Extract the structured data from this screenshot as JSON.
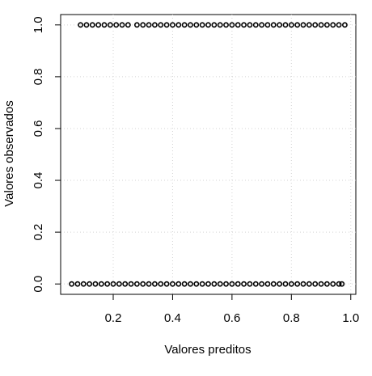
{
  "chart_data": {
    "type": "scatter",
    "x_label": "Valores preditos",
    "y_label": "Valores observados",
    "xlim": [
      0.023,
      1.017
    ],
    "ylim": [
      -0.04,
      1.04
    ],
    "xticks": [
      0.2,
      0.4,
      0.6,
      0.8,
      {
        "value": 1,
        "label": "1.0"
      }
    ],
    "yticks": [
      {
        "value": 0,
        "label": "0.0"
      },
      0.2,
      0.4,
      0.6,
      0.8,
      {
        "value": 1,
        "label": "1.0"
      }
    ],
    "grid": true,
    "series": [
      {
        "color": "#000000",
        "x": [
          0.09,
          0.11,
          0.13,
          0.15,
          0.17,
          0.19,
          0.21,
          0.23,
          0.25,
          0.28,
          0.3,
          0.32,
          0.34,
          0.36,
          0.38,
          0.4,
          0.42,
          0.44,
          0.46,
          0.48,
          0.5,
          0.52,
          0.54,
          0.56,
          0.58,
          0.6,
          0.62,
          0.64,
          0.66,
          0.68,
          0.7,
          0.72,
          0.74,
          0.76,
          0.78,
          0.8,
          0.82,
          0.84,
          0.86,
          0.88,
          0.9,
          0.92,
          0.94,
          0.96,
          0.98
        ],
        "values": [
          1,
          1,
          1,
          1,
          1,
          1,
          1,
          1,
          1,
          1,
          1,
          1,
          1,
          1,
          1,
          1,
          1,
          1,
          1,
          1,
          1,
          1,
          1,
          1,
          1,
          1,
          1,
          1,
          1,
          1,
          1,
          1,
          1,
          1,
          1,
          1,
          1,
          1,
          1,
          1,
          1,
          1,
          1,
          1,
          1
        ]
      },
      {
        "color": "#000000",
        "x": [
          0.06,
          0.08,
          0.1,
          0.12,
          0.14,
          0.16,
          0.18,
          0.2,
          0.22,
          0.24,
          0.26,
          0.28,
          0.3,
          0.32,
          0.34,
          0.36,
          0.38,
          0.4,
          0.42,
          0.44,
          0.46,
          0.48,
          0.5,
          0.52,
          0.54,
          0.56,
          0.58,
          0.6,
          0.62,
          0.64,
          0.66,
          0.68,
          0.7,
          0.72,
          0.74,
          0.76,
          0.78,
          0.8,
          0.82,
          0.84,
          0.86,
          0.88,
          0.9,
          0.92,
          0.94,
          0.96,
          0.97
        ],
        "values": [
          0,
          0,
          0,
          0,
          0,
          0,
          0,
          0,
          0,
          0,
          0,
          0,
          0,
          0,
          0,
          0,
          0,
          0,
          0,
          0,
          0,
          0,
          0,
          0,
          0,
          0,
          0,
          0,
          0,
          0,
          0,
          0,
          0,
          0,
          0,
          0,
          0,
          0,
          0,
          0,
          0,
          0,
          0,
          0,
          0,
          0,
          0
        ]
      }
    ]
  }
}
